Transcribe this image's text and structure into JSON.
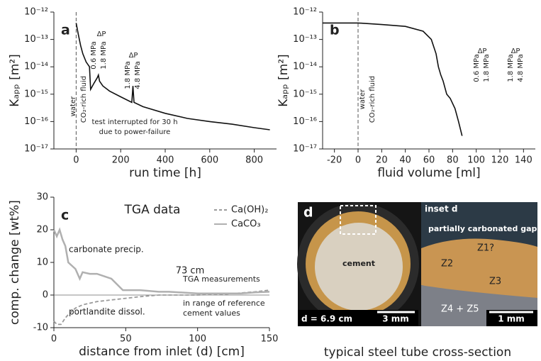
{
  "chart_data": [
    {
      "type": "line",
      "panel_label": "a",
      "xlabel": "run time [h]",
      "ylabel": "Kₐₚₚ [m²]",
      "log_y": true,
      "xlim": [
        -100,
        900
      ],
      "ylim": [
        1e-17,
        1e-12
      ],
      "xticks": [
        0,
        200,
        400,
        600,
        800
      ],
      "yticks": [
        {
          "value": 1e-17,
          "label": "10⁻¹⁷"
        },
        {
          "value": 1e-16,
          "label": "10⁻¹⁶"
        },
        {
          "value": 1e-15,
          "label": "10⁻¹⁵"
        },
        {
          "value": 1e-14,
          "label": "10⁻¹⁴"
        },
        {
          "value": 1e-13,
          "label": "10⁻¹³"
        },
        {
          "value": 1e-12,
          "label": "10⁻¹²"
        }
      ],
      "vline": 0,
      "x": [
        0,
        10,
        20,
        30,
        45,
        60,
        65,
        80,
        95,
        100,
        105,
        120,
        150,
        200,
        250,
        255,
        260,
        300,
        400,
        500,
        600,
        700,
        800,
        870
      ],
      "series": [
        {
          "color": "#111111",
          "values": [
            4e-13,
            1.5e-13,
            6e-14,
            3e-14,
            1.5e-14,
            1e-14,
            1.5e-15,
            2.5e-15,
            4e-15,
            5e-15,
            3e-15,
            2e-15,
            1.3e-15,
            8e-16,
            5e-16,
            2e-15,
            5e-16,
            3.5e-16,
            2e-16,
            1.3e-16,
            1e-16,
            8e-17,
            6e-17,
            5e-17
          ]
        }
      ],
      "annotations": [
        "water",
        "CO₂-rich fluid",
        "ΔP",
        "0.6 MPa",
        "1.8 MPa",
        "ΔP",
        "1.8 MPa",
        "4.8 MPa",
        "test interrupted for 30 h",
        "due to power-failure"
      ]
    },
    {
      "type": "line",
      "panel_label": "b",
      "xlabel": "fluid volume [ml]",
      "ylabel": "Kₐₚₚ [m²]",
      "log_y": true,
      "xlim": [
        -30,
        150
      ],
      "ylim": [
        1e-17,
        1e-12
      ],
      "xticks": [
        -20,
        0,
        20,
        40,
        60,
        80,
        100,
        120,
        140
      ],
      "yticks": [
        {
          "value": 1e-17,
          "label": "10⁻¹⁷"
        },
        {
          "value": 1e-16,
          "label": "10⁻¹⁶"
        },
        {
          "value": 1e-15,
          "label": "10⁻¹⁵"
        },
        {
          "value": 1e-14,
          "label": "10⁻¹⁴"
        },
        {
          "value": 1e-13,
          "label": "10⁻¹³"
        },
        {
          "value": 1e-12,
          "label": "10⁻¹²"
        }
      ],
      "vline": 0,
      "x": [
        -30,
        0,
        20,
        40,
        55,
        62,
        66,
        68,
        70,
        72,
        75,
        78,
        82,
        85,
        88
      ],
      "series": [
        {
          "color": "#111111",
          "values": [
            4e-13,
            4e-13,
            3.5e-13,
            3e-13,
            2e-13,
            1e-13,
            3e-14,
            1e-14,
            5e-15,
            3e-15,
            1e-15,
            7e-16,
            3e-16,
            1e-16,
            3e-17
          ]
        }
      ],
      "annotations": [
        "water",
        "CO₂-rich fluid",
        "ΔP",
        "0.6 MPa",
        "1.8 MPa",
        "ΔP",
        "1.8 MPa",
        "4.8 MPa"
      ]
    },
    {
      "type": "line",
      "panel_label": "c",
      "xlabel": "distance from inlet (d) [cm]",
      "ylabel": "comp. change [wt%]",
      "xlim": [
        0,
        150
      ],
      "ylim": [
        -10,
        30
      ],
      "xticks": [
        0,
        50,
        100,
        150
      ],
      "yticks": [
        -10,
        0,
        10,
        20,
        30
      ],
      "series": [
        {
          "name": "Ca(OH)₂",
          "color": "#9a9a9a",
          "dashed": true,
          "x": [
            0,
            2,
            5,
            8,
            10,
            15,
            20,
            25,
            30,
            40,
            50,
            60,
            73,
            80,
            100,
            120,
            140,
            150
          ],
          "values": [
            -8,
            -9,
            -9,
            -7,
            -6,
            -4,
            -3,
            -2.5,
            -2,
            -1.5,
            -1,
            -0.5,
            0,
            0,
            0,
            0.3,
            1,
            1.5
          ]
        },
        {
          "name": "CaCO₃",
          "color": "#b0b0b0",
          "x": [
            0,
            2,
            4,
            6,
            8,
            10,
            15,
            18,
            20,
            25,
            30,
            40,
            48,
            60,
            73,
            80,
            100,
            120,
            130,
            140,
            150
          ],
          "values": [
            20,
            18,
            20,
            17,
            15,
            10,
            8,
            5,
            7,
            6.5,
            6.5,
            5,
            1.5,
            1.5,
            1,
            1,
            0.5,
            0.5,
            0.5,
            0.8,
            1
          ]
        }
      ],
      "annotations": [
        "TGA data",
        "carbonate precip.",
        "73 cm",
        "TGA measurements",
        "portlandite dissol.",
        "in range of reference",
        "cement values"
      ]
    }
  ],
  "panel_d": {
    "label": "d",
    "cement": "cement",
    "diameter": "d = 6.9 cm",
    "scale_left": "3 mm",
    "inset": "inset d",
    "gap": "partially carbonated gap",
    "z1": "Z1?",
    "z2": "Z2",
    "z3": "Z3",
    "z45": "Z4 + Z5",
    "scale_right": "1 mm",
    "caption": "typical steel tube cross-section"
  }
}
